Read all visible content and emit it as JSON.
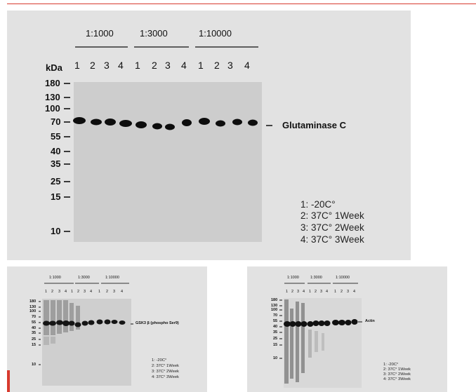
{
  "header_rule_color": "#d83a2e",
  "blot_main": {
    "dilutions": [
      "1:1000",
      "1:3000",
      "1:10000"
    ],
    "lanes": [
      "1",
      "2",
      "3",
      "4",
      "1",
      "2",
      "3",
      "4",
      "1",
      "2",
      "3",
      "4"
    ],
    "kda_title": "kDa",
    "markers": [
      "180",
      "130",
      "100",
      "70",
      "55",
      "40",
      "35",
      "25",
      "15",
      "10"
    ],
    "band_label": "Glutaminase C",
    "legend": [
      "1: -20C°",
      "2: 37C°  1Week",
      "3: 37C°  2Week",
      "4: 37C°  3Week"
    ]
  },
  "blot_left": {
    "dilutions": [
      "1:1000",
      "1:3000",
      "1:10000"
    ],
    "lanes": [
      "1",
      "2",
      "3",
      "4",
      "1",
      "2",
      "3",
      "4",
      "1",
      "2",
      "3",
      "4"
    ],
    "markers": [
      "180",
      "130",
      "100",
      "70",
      "55",
      "40",
      "35",
      "25",
      "15",
      "10"
    ],
    "band_label": "GSK3 β (phospho Ser9)",
    "legend": [
      "1: -20C°",
      "2: 37C°  1Week",
      "3: 37C°  2Week",
      "4: 37C°  3Week"
    ]
  },
  "blot_right": {
    "dilutions": [
      "1:1000",
      "1:3000",
      "1:10000"
    ],
    "lanes": [
      "1",
      "2",
      "3",
      "4",
      "1",
      "2",
      "3",
      "4",
      "1",
      "2",
      "3",
      "4"
    ],
    "markers": [
      "180",
      "130",
      "100",
      "70",
      "55",
      "40",
      "35",
      "25",
      "15",
      "10"
    ],
    "band_label": "Actin",
    "legend": [
      "1: -20C°",
      "2: 37C°  1Week",
      "3: 37C°  2Week",
      "4: 37C°  3Week"
    ]
  }
}
